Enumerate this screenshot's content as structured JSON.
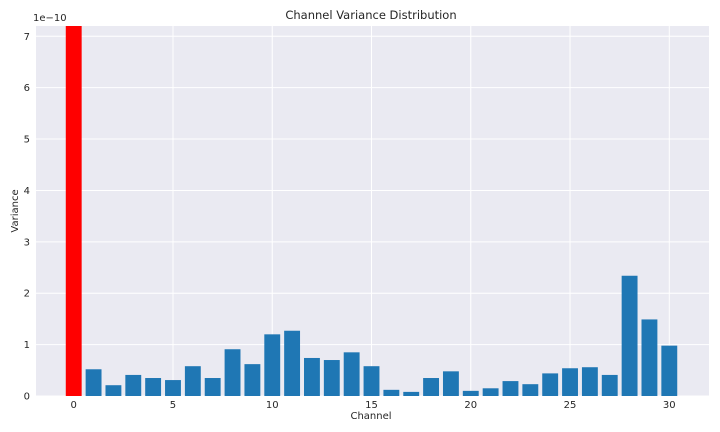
{
  "chart_data": {
    "type": "bar",
    "title": "Channel Variance Distribution",
    "xlabel": "Channel",
    "ylabel": "Variance",
    "y_scale_label": "1e−10",
    "xlim": [
      -1.9,
      32.0
    ],
    "ylim": [
      0,
      7.2
    ],
    "x_ticks": [
      0,
      5,
      10,
      15,
      20,
      25,
      30
    ],
    "y_ticks": [
      0,
      1,
      2,
      3,
      4,
      5,
      6,
      7
    ],
    "grid": true,
    "legend": "none",
    "categories": [
      0,
      1,
      2,
      3,
      4,
      5,
      6,
      7,
      8,
      9,
      10,
      11,
      12,
      13,
      14,
      15,
      16,
      17,
      18,
      19,
      20,
      21,
      22,
      23,
      24,
      25,
      26,
      27,
      28,
      29,
      30
    ],
    "values": [
      7.2,
      0.52,
      0.21,
      0.41,
      0.35,
      0.31,
      0.58,
      0.35,
      0.91,
      0.62,
      1.2,
      1.27,
      0.74,
      0.7,
      0.85,
      0.58,
      0.12,
      0.08,
      0.35,
      0.48,
      0.1,
      0.15,
      0.29,
      0.23,
      0.44,
      0.54,
      0.56,
      0.41,
      2.34,
      1.49,
      0.98
    ],
    "highlight_index": 0,
    "colors": {
      "default": "#1f77b4",
      "highlight": "#ff0000",
      "plot_bg": "#eaeaf2",
      "grid": "#ffffff"
    }
  }
}
